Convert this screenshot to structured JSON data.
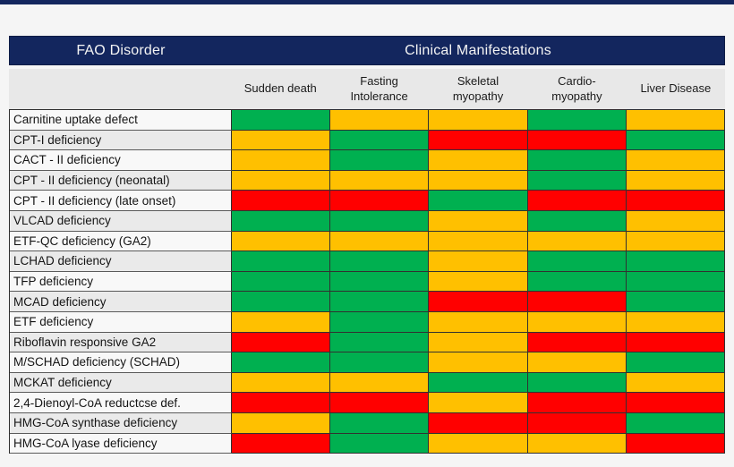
{
  "page": {
    "background": "#f5f5f5",
    "accent_navy": "#13265e"
  },
  "header": {
    "fao_title": "FAO Disorder",
    "clinical_title": "Clinical Manifestations"
  },
  "chart_data": {
    "type": "heatmap",
    "title_left": "FAO Disorder",
    "title_right": "Clinical Manifestations",
    "columns": [
      "Sudden death",
      "Fasting\nIntolerance",
      "Skeletal\nmyopathy",
      "Cardio-\nmyopathy",
      "Liver Disease"
    ],
    "cell_colors": {
      "green": "#00B050",
      "yellow": "#FFC000",
      "red": "#FF0000"
    },
    "rows": [
      {
        "label": "Carnitine uptake defect",
        "cells": [
          "green",
          "yellow",
          "yellow",
          "green",
          "yellow"
        ]
      },
      {
        "label": "CPT-I deficiency",
        "cells": [
          "yellow",
          "green",
          "red",
          "red",
          "green"
        ]
      },
      {
        "label": "CACT - II deficiency",
        "cells": [
          "yellow",
          "green",
          "yellow",
          "green",
          "yellow"
        ]
      },
      {
        "label": "CPT - II deficiency (neonatal)",
        "cells": [
          "yellow",
          "yellow",
          "yellow",
          "green",
          "yellow"
        ]
      },
      {
        "label": "CPT - II deficiency (late onset)",
        "cells": [
          "red",
          "red",
          "green",
          "red",
          "red"
        ]
      },
      {
        "label": "VLCAD deficiency",
        "cells": [
          "green",
          "green",
          "yellow",
          "green",
          "yellow"
        ]
      },
      {
        "label": "ETF-QC deficiency (GA2)",
        "cells": [
          "yellow",
          "yellow",
          "yellow",
          "yellow",
          "yellow"
        ]
      },
      {
        "label": "LCHAD deficiency",
        "cells": [
          "green",
          "green",
          "yellow",
          "green",
          "green"
        ]
      },
      {
        "label": "TFP deficiency",
        "cells": [
          "green",
          "green",
          "yellow",
          "green",
          "green"
        ]
      },
      {
        "label": "MCAD deficiency",
        "cells": [
          "green",
          "green",
          "red",
          "red",
          "green"
        ]
      },
      {
        "label": "ETF deficiency",
        "cells": [
          "yellow",
          "green",
          "yellow",
          "yellow",
          "yellow"
        ]
      },
      {
        "label": "Riboflavin responsive GA2",
        "cells": [
          "red",
          "green",
          "yellow",
          "red",
          "red"
        ]
      },
      {
        "label": "M/SCHAD deficiency (SCHAD)",
        "cells": [
          "green",
          "green",
          "yellow",
          "yellow",
          "green"
        ]
      },
      {
        "label": "MCKAT deficiency",
        "cells": [
          "yellow",
          "yellow",
          "green",
          "green",
          "yellow"
        ]
      },
      {
        "label": "2,4-Dienoyl-CoA reductcse def.",
        "cells": [
          "red",
          "red",
          "yellow",
          "red",
          "red"
        ]
      },
      {
        "label": "HMG-CoA synthase deficiency",
        "cells": [
          "yellow",
          "green",
          "red",
          "red",
          "green"
        ]
      },
      {
        "label": "HMG-CoA lyase deficiency",
        "cells": [
          "red",
          "green",
          "yellow",
          "yellow",
          "red"
        ]
      }
    ]
  }
}
